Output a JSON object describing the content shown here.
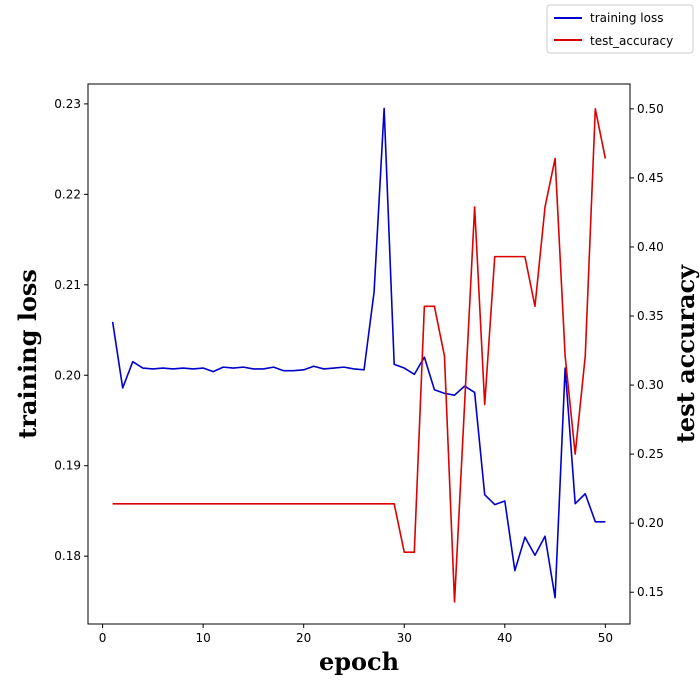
{
  "chart_data": {
    "type": "line",
    "xlabel": "epoch",
    "ylabel_left": "training loss",
    "ylabel_right": "test accuracy",
    "xlim": [
      -1.45,
      52.45
    ],
    "ylim_left": [
      0.1725,
      0.2322
    ],
    "ylim_right": [
      0.127,
      0.518
    ],
    "x_ticks": [
      0,
      10,
      20,
      30,
      40,
      50
    ],
    "y_left_ticks": [
      0.18,
      0.19,
      0.2,
      0.21,
      0.22,
      0.23
    ],
    "y_right_ticks": [
      0.15,
      0.2,
      0.25,
      0.3,
      0.35,
      0.4,
      0.45,
      0.5
    ],
    "legend_placement": "top-right",
    "grid": false,
    "x": [
      1,
      2,
      3,
      4,
      5,
      6,
      7,
      8,
      9,
      10,
      11,
      12,
      13,
      14,
      15,
      16,
      17,
      18,
      19,
      20,
      21,
      22,
      23,
      24,
      25,
      26,
      27,
      28,
      29,
      30,
      31,
      32,
      33,
      34,
      35,
      36,
      37,
      38,
      39,
      40,
      41,
      42,
      43,
      44,
      45,
      46,
      47,
      48,
      49,
      50
    ],
    "series": [
      {
        "name": "training loss",
        "axis": "left",
        "color": "#0000cc",
        "values": [
          0.2059,
          0.1986,
          0.2015,
          0.2008,
          0.2007,
          0.2008,
          0.2007,
          0.2008,
          0.2007,
          0.2008,
          0.2004,
          0.2009,
          0.2008,
          0.2009,
          0.2007,
          0.2007,
          0.2009,
          0.2005,
          0.2005,
          0.2006,
          0.201,
          0.2007,
          0.2008,
          0.2009,
          0.2007,
          0.2006,
          0.2092,
          0.2295,
          0.2012,
          0.2008,
          0.2001,
          0.202,
          0.1984,
          0.198,
          0.1978,
          0.1988,
          0.1981,
          0.1868,
          0.1857,
          0.1861,
          0.1784,
          0.1821,
          0.1801,
          0.1822,
          0.1754,
          0.2008,
          0.1858,
          0.1869,
          0.1838,
          0.1838
        ]
      },
      {
        "name": "test_accuracy",
        "axis": "right",
        "color": "#dd0000",
        "values": [
          0.214,
          0.214,
          0.214,
          0.214,
          0.214,
          0.214,
          0.214,
          0.214,
          0.214,
          0.214,
          0.214,
          0.214,
          0.214,
          0.214,
          0.214,
          0.214,
          0.214,
          0.214,
          0.214,
          0.214,
          0.214,
          0.214,
          0.214,
          0.214,
          0.214,
          0.214,
          0.214,
          0.214,
          0.214,
          0.179,
          0.179,
          0.357,
          0.357,
          0.321,
          0.143,
          0.286,
          0.429,
          0.286,
          0.393,
          0.393,
          0.393,
          0.393,
          0.357,
          0.429,
          0.464,
          0.321,
          0.25,
          0.321,
          0.5,
          0.464
        ]
      }
    ]
  }
}
